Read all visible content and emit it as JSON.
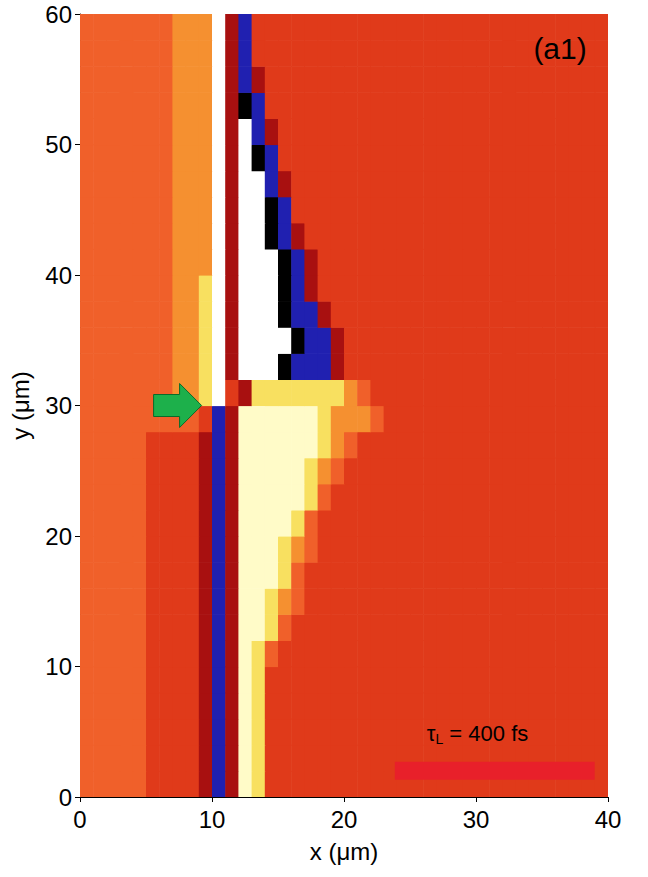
{
  "chart_data": {
    "type": "heatmap",
    "panel_label": "(a1)",
    "annotation": {
      "parts": [
        "τ",
        "L",
        " = 400 fs"
      ]
    },
    "x_label": "x (μm)",
    "y_label": "y (μm)",
    "xlim": [
      0,
      40
    ],
    "xticks": [
      0,
      10,
      20,
      30,
      40
    ],
    "ylim": [
      0,
      60
    ],
    "yticks": [
      0,
      10,
      20,
      30,
      40,
      50,
      60
    ],
    "grid": false,
    "color_range": [
      -4,
      5
    ],
    "colormap": [
      "#ffffff",
      "#000000",
      "#2020b0",
      "#a81010",
      "#e03a1a",
      "#f0602a",
      "#f59030",
      "#f8e060",
      "#fffbc8",
      "#ffffff"
    ],
    "cells": {
      "x_start": 0,
      "x_step": 1,
      "y_start": 0,
      "y_step": 2,
      "values": [
        [
          1,
          1,
          1,
          1,
          1,
          0,
          0,
          0,
          0,
          -1,
          -2,
          -1,
          4,
          3,
          0,
          0,
          0,
          0,
          0,
          0,
          0,
          0,
          0,
          0,
          0,
          0,
          0,
          0,
          0,
          0,
          0,
          0,
          0,
          0,
          0,
          0,
          0,
          0,
          0,
          0
        ],
        [
          1,
          1,
          1,
          1,
          1,
          0,
          0,
          0,
          0,
          -1,
          -2,
          -1,
          4,
          3,
          0,
          0,
          0,
          0,
          0,
          0,
          0,
          0,
          0,
          0,
          0,
          0,
          0,
          0,
          0,
          0,
          0,
          0,
          0,
          0,
          0,
          0,
          0,
          0,
          0,
          0
        ],
        [
          1,
          1,
          1,
          1,
          1,
          0,
          0,
          0,
          0,
          -1,
          -2,
          -1,
          4,
          3,
          0,
          0,
          0,
          0,
          0,
          0,
          0,
          0,
          0,
          0,
          0,
          0,
          0,
          0,
          0,
          0,
          0,
          0,
          0,
          0,
          0,
          0,
          0,
          0,
          0,
          0
        ],
        [
          1,
          1,
          1,
          1,
          1,
          0,
          0,
          0,
          0,
          -1,
          -2,
          -1,
          4,
          3,
          0,
          0,
          0,
          0,
          0,
          0,
          0,
          0,
          0,
          0,
          0,
          0,
          0,
          0,
          0,
          0,
          0,
          0,
          0,
          0,
          0,
          0,
          0,
          0,
          0,
          0
        ],
        [
          1,
          1,
          1,
          1,
          1,
          0,
          0,
          0,
          0,
          -1,
          -2,
          -1,
          4,
          3,
          0,
          0,
          0,
          0,
          0,
          0,
          0,
          0,
          0,
          0,
          0,
          0,
          0,
          0,
          0,
          0,
          0,
          0,
          0,
          0,
          0,
          0,
          0,
          0,
          0,
          0
        ],
        [
          1,
          1,
          1,
          1,
          1,
          0,
          0,
          0,
          0,
          -1,
          -2,
          -1,
          4,
          3,
          1,
          0,
          0,
          0,
          0,
          0,
          0,
          0,
          0,
          0,
          0,
          0,
          0,
          0,
          0,
          0,
          0,
          0,
          0,
          0,
          0,
          0,
          0,
          0,
          0,
          0
        ],
        [
          1,
          1,
          1,
          1,
          1,
          0,
          0,
          0,
          0,
          -1,
          -2,
          -1,
          4,
          4,
          3,
          1,
          0,
          0,
          0,
          0,
          0,
          0,
          0,
          0,
          0,
          0,
          0,
          0,
          0,
          0,
          0,
          0,
          0,
          0,
          0,
          0,
          0,
          0,
          0,
          0
        ],
        [
          1,
          1,
          1,
          1,
          1,
          0,
          0,
          0,
          0,
          -1,
          -2,
          -1,
          4,
          4,
          3,
          2,
          1,
          0,
          0,
          0,
          0,
          0,
          0,
          0,
          0,
          0,
          0,
          0,
          0,
          0,
          0,
          0,
          0,
          0,
          0,
          0,
          0,
          0,
          0,
          0
        ],
        [
          1,
          1,
          1,
          1,
          1,
          0,
          0,
          0,
          0,
          -1,
          -2,
          -1,
          4,
          4,
          4,
          3,
          1,
          0,
          0,
          0,
          0,
          0,
          0,
          0,
          0,
          0,
          0,
          0,
          0,
          0,
          0,
          0,
          0,
          0,
          0,
          0,
          0,
          0,
          0,
          0
        ],
        [
          1,
          1,
          1,
          1,
          1,
          0,
          0,
          0,
          0,
          -1,
          -2,
          -1,
          4,
          4,
          4,
          3,
          2,
          1,
          0,
          0,
          0,
          0,
          0,
          0,
          0,
          0,
          0,
          0,
          0,
          0,
          0,
          0,
          0,
          0,
          0,
          0,
          0,
          0,
          0,
          0
        ],
        [
          1,
          1,
          1,
          1,
          1,
          0,
          0,
          0,
          0,
          -1,
          -2,
          -1,
          4,
          4,
          4,
          4,
          3,
          1,
          0,
          0,
          0,
          0,
          0,
          0,
          0,
          0,
          0,
          0,
          0,
          0,
          0,
          0,
          0,
          0,
          0,
          0,
          0,
          0,
          0,
          0
        ],
        [
          1,
          1,
          1,
          1,
          1,
          0,
          0,
          0,
          0,
          -1,
          -2,
          -1,
          4,
          4,
          4,
          4,
          4,
          3,
          1,
          0,
          0,
          0,
          0,
          0,
          0,
          0,
          0,
          0,
          0,
          0,
          0,
          0,
          0,
          0,
          0,
          0,
          0,
          0,
          0,
          0
        ],
        [
          1,
          1,
          1,
          1,
          1,
          0,
          0,
          0,
          0,
          -1,
          -2,
          -1,
          4,
          4,
          4,
          4,
          4,
          3,
          2,
          1,
          0,
          0,
          0,
          0,
          0,
          0,
          0,
          0,
          0,
          0,
          0,
          0,
          0,
          0,
          0,
          0,
          0,
          0,
          0,
          0
        ],
        [
          1,
          1,
          1,
          1,
          1,
          0,
          0,
          0,
          0,
          -1,
          -2,
          -1,
          4,
          4,
          4,
          4,
          4,
          4,
          3,
          2,
          1,
          0,
          0,
          0,
          0,
          0,
          0,
          0,
          0,
          0,
          0,
          0,
          0,
          0,
          0,
          0,
          0,
          0,
          0,
          0
        ],
        [
          1,
          1,
          1,
          1,
          1,
          1,
          1,
          1,
          1,
          0,
          -2,
          -1,
          4,
          4,
          4,
          4,
          4,
          4,
          3,
          2,
          2,
          2,
          1,
          0,
          0,
          0,
          0,
          0,
          0,
          0,
          0,
          0,
          0,
          0,
          0,
          0,
          0,
          0,
          0,
          0
        ],
        [
          1,
          1,
          1,
          1,
          1,
          1,
          1,
          2,
          2,
          3,
          5,
          0,
          -1,
          3,
          3,
          3,
          3,
          3,
          3,
          3,
          2,
          1,
          0,
          0,
          0,
          0,
          0,
          0,
          0,
          0,
          0,
          0,
          0,
          0,
          0,
          0,
          0,
          0,
          0,
          0
        ],
        [
          1,
          1,
          1,
          1,
          1,
          1,
          1,
          2,
          2,
          3,
          5,
          -1,
          -4,
          -4,
          -4,
          -3,
          -2,
          -2,
          -2,
          -1,
          0,
          0,
          0,
          0,
          0,
          0,
          0,
          0,
          0,
          0,
          0,
          0,
          0,
          0,
          0,
          0,
          0,
          0,
          0,
          0
        ],
        [
          1,
          1,
          1,
          1,
          1,
          1,
          1,
          2,
          2,
          3,
          5,
          -1,
          -4,
          -4,
          -4,
          -4,
          -3,
          -2,
          -2,
          -1,
          0,
          0,
          0,
          0,
          0,
          0,
          0,
          0,
          0,
          0,
          0,
          0,
          0,
          0,
          0,
          0,
          0,
          0,
          0,
          0
        ],
        [
          1,
          1,
          1,
          1,
          1,
          1,
          1,
          2,
          2,
          3,
          5,
          -1,
          -4,
          -4,
          -4,
          -3,
          -2,
          -2,
          -1,
          0,
          0,
          0,
          0,
          0,
          0,
          0,
          0,
          0,
          0,
          0,
          0,
          0,
          0,
          0,
          0,
          0,
          0,
          0,
          0,
          0
        ],
        [
          1,
          1,
          1,
          1,
          1,
          1,
          1,
          2,
          2,
          3,
          5,
          -1,
          -4,
          -4,
          -4,
          -3,
          -2,
          -1,
          0,
          0,
          0,
          0,
          0,
          0,
          0,
          0,
          0,
          0,
          0,
          0,
          0,
          0,
          0,
          0,
          0,
          0,
          0,
          0,
          0,
          0
        ],
        [
          1,
          1,
          1,
          1,
          1,
          1,
          1,
          2,
          2,
          2,
          5,
          -1,
          -4,
          -4,
          -4,
          -3,
          -2,
          -1,
          0,
          0,
          0,
          0,
          0,
          0,
          0,
          0,
          0,
          0,
          0,
          0,
          0,
          0,
          0,
          0,
          0,
          0,
          0,
          0,
          0,
          0
        ],
        [
          1,
          1,
          1,
          1,
          1,
          1,
          1,
          2,
          2,
          2,
          5,
          -1,
          -4,
          -4,
          -3,
          -2,
          -1,
          0,
          0,
          0,
          0,
          0,
          0,
          0,
          0,
          0,
          0,
          0,
          0,
          0,
          0,
          0,
          0,
          0,
          0,
          0,
          0,
          0,
          0,
          0
        ],
        [
          1,
          1,
          1,
          1,
          1,
          1,
          1,
          2,
          2,
          2,
          5,
          -1,
          -4,
          -4,
          -3,
          -2,
          0,
          0,
          0,
          0,
          0,
          0,
          0,
          0,
          0,
          0,
          0,
          0,
          0,
          0,
          0,
          0,
          0,
          0,
          0,
          0,
          0,
          0,
          0,
          0
        ],
        [
          1,
          1,
          1,
          1,
          1,
          1,
          1,
          2,
          2,
          2,
          5,
          -1,
          -4,
          -4,
          -2,
          -1,
          0,
          0,
          0,
          0,
          0,
          0,
          0,
          0,
          0,
          0,
          0,
          0,
          0,
          0,
          0,
          0,
          0,
          0,
          0,
          0,
          0,
          0,
          0,
          0
        ],
        [
          1,
          1,
          1,
          1,
          1,
          1,
          1,
          2,
          2,
          2,
          5,
          -1,
          -4,
          -3,
          -2,
          0,
          0,
          0,
          0,
          0,
          0,
          0,
          0,
          0,
          0,
          0,
          0,
          0,
          0,
          0,
          0,
          0,
          0,
          0,
          0,
          0,
          0,
          0,
          0,
          0
        ],
        [
          1,
          1,
          1,
          1,
          1,
          1,
          1,
          2,
          2,
          2,
          5,
          -1,
          -4,
          -2,
          -1,
          0,
          0,
          0,
          0,
          0,
          0,
          0,
          0,
          0,
          0,
          0,
          0,
          0,
          0,
          0,
          0,
          0,
          0,
          0,
          0,
          0,
          0,
          0,
          0,
          0
        ],
        [
          1,
          1,
          1,
          1,
          1,
          1,
          1,
          2,
          2,
          2,
          5,
          -1,
          -3,
          -2,
          0,
          0,
          0,
          0,
          0,
          0,
          0,
          0,
          0,
          0,
          0,
          0,
          0,
          0,
          0,
          0,
          0,
          0,
          0,
          0,
          0,
          0,
          0,
          0,
          0,
          0
        ],
        [
          1,
          1,
          1,
          1,
          1,
          1,
          1,
          2,
          2,
          2,
          5,
          -1,
          -2,
          -1,
          0,
          0,
          0,
          0,
          0,
          0,
          0,
          0,
          0,
          0,
          0,
          0,
          0,
          0,
          0,
          0,
          0,
          0,
          0,
          0,
          0,
          0,
          0,
          0,
          0,
          0
        ],
        [
          1,
          1,
          1,
          1,
          1,
          1,
          1,
          2,
          2,
          2,
          5,
          -1,
          -2,
          0,
          0,
          0,
          0,
          0,
          0,
          0,
          0,
          0,
          0,
          0,
          0,
          0,
          0,
          0,
          0,
          0,
          0,
          0,
          0,
          0,
          0,
          0,
          0,
          0,
          0,
          0
        ],
        [
          1,
          1,
          1,
          1,
          1,
          1,
          1,
          2,
          2,
          2,
          5,
          -1,
          -2,
          0,
          0,
          0,
          0,
          0,
          0,
          0,
          0,
          0,
          0,
          0,
          0,
          0,
          0,
          0,
          0,
          0,
          0,
          0,
          0,
          0,
          0,
          0,
          0,
          0,
          0,
          0
        ]
      ]
    }
  }
}
